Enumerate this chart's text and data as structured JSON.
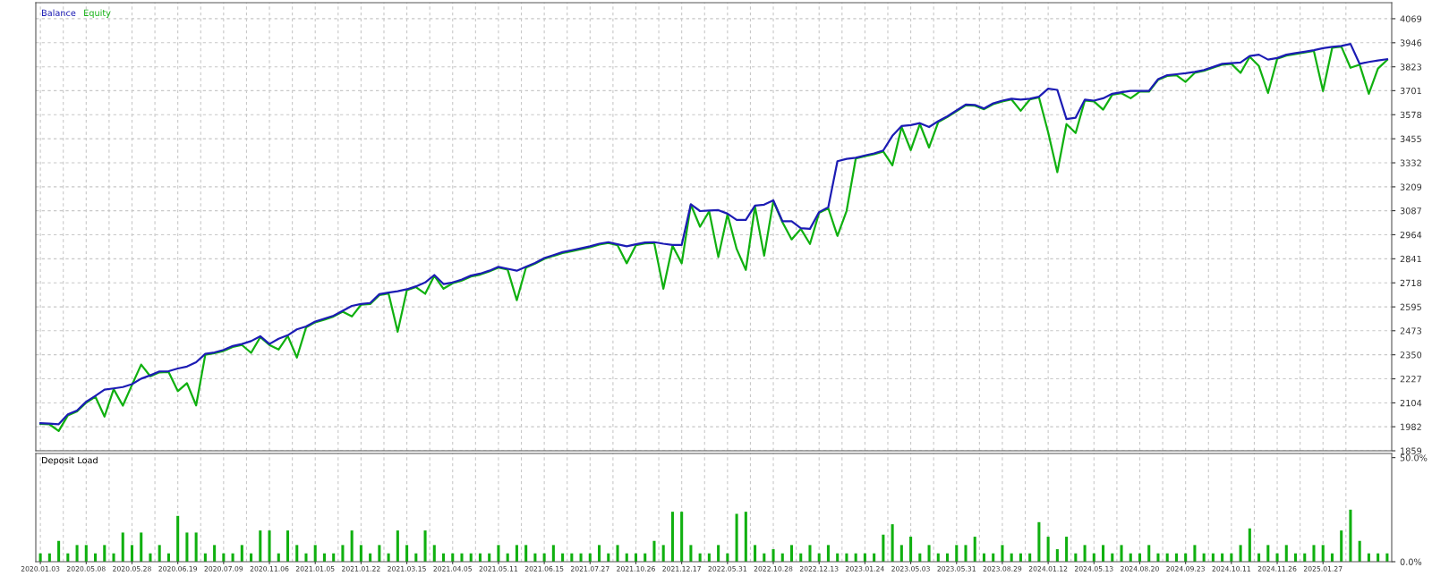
{
  "chart_data": [
    {
      "type": "line",
      "tick_labels": "y",
      "grid": true,
      "legend": "top left",
      "categories": [
        "2020.01.03",
        null,
        null,
        null,
        null,
        "2020.05.08",
        null,
        null,
        null,
        null,
        "2020.05.28",
        null,
        null,
        null,
        null,
        "2020.06.19",
        null,
        null,
        null,
        null,
        "2020.07.09",
        null,
        null,
        null,
        null,
        "2020.11.06",
        null,
        null,
        null,
        null,
        "2021.01.05",
        null,
        null,
        null,
        null,
        "2021.01.22",
        null,
        null,
        null,
        null,
        "2021.03.15",
        null,
        null,
        null,
        null,
        "2021.04.05",
        null,
        null,
        null,
        null,
        "2021.05.11",
        null,
        null,
        null,
        null,
        "2021.06.15",
        null,
        null,
        null,
        null,
        "2021.07.27",
        null,
        null,
        null,
        null,
        "2021.10.26",
        null,
        null,
        null,
        null,
        "2021.12.17",
        null,
        null,
        null,
        null,
        "2022.05.31",
        null,
        null,
        null,
        null,
        "2022.10.28",
        null,
        null,
        null,
        null,
        "2022.12.13",
        null,
        null,
        null,
        null,
        "2023.01.24",
        null,
        null,
        null,
        null,
        "2023.05.03",
        null,
        null,
        null,
        null,
        "2023.05.31",
        null,
        null,
        null,
        null,
        "2023.08.29",
        null,
        null,
        null,
        null,
        "2024.01.12",
        null,
        null,
        null,
        null,
        "2024.05.13",
        null,
        null,
        null,
        null,
        "2024.08.20",
        null,
        null,
        null,
        null,
        "2024.09.23",
        null,
        null,
        null,
        null,
        "2024.10.11",
        null,
        null,
        null,
        null,
        "2024.11.26",
        null,
        null,
        null,
        null,
        "2025.01.27",
        null,
        null,
        null,
        null,
        null,
        null,
        null
      ],
      "ylim": [
        1859,
        4151
      ],
      "yticks": [
        1859,
        1982,
        2104,
        2227,
        2350,
        2473,
        2595,
        2718,
        2841,
        2964,
        3087,
        3209,
        3332,
        3455,
        3578,
        3701,
        3823,
        3946,
        4069
      ],
      "series": [
        {
          "name": "Equity",
          "color": "#10b010",
          "values": [
            1996,
            1994,
            1960,
            2040,
            2060,
            2105,
            2136,
            2034,
            2174,
            2090,
            2196,
            2300,
            2240,
            2260,
            2262,
            2164,
            2205,
            2091,
            2350,
            2358,
            2370,
            2390,
            2400,
            2360,
            2440,
            2400,
            2377,
            2446,
            2336,
            2490,
            2516,
            2530,
            2546,
            2570,
            2546,
            2606,
            2610,
            2655,
            2664,
            2468,
            2680,
            2696,
            2662,
            2754,
            2688,
            2716,
            2730,
            2750,
            2760,
            2776,
            2796,
            2786,
            2629,
            2796,
            2816,
            2840,
            2856,
            2870,
            2880,
            2890,
            2900,
            2914,
            2922,
            2910,
            2818,
            2910,
            2920,
            2922,
            2688,
            2908,
            2818,
            3118,
            3005,
            3084,
            2850,
            3068,
            2891,
            2784,
            3108,
            2857,
            3136,
            3028,
            2940,
            2994,
            2917,
            3076,
            3100,
            2958,
            3086,
            3354,
            3366,
            3376,
            3390,
            3319,
            3515,
            3397,
            3530,
            3410,
            3540,
            3566,
            3596,
            3626,
            3624,
            3606,
            3632,
            3646,
            3656,
            3598,
            3656,
            3666,
            3488,
            3284,
            3530,
            3484,
            3650,
            3646,
            3604,
            3680,
            3688,
            3662,
            3696,
            3696,
            3756,
            3776,
            3780,
            3746,
            3792,
            3802,
            3818,
            3834,
            3838,
            3792,
            3874,
            3827,
            3689,
            3864,
            3880,
            3888,
            3896,
            3904,
            3699,
            3920,
            3926,
            3818,
            3834,
            3685,
            3814,
            3858
          ]
        },
        {
          "name": "Balance",
          "color": "#1c1cb4",
          "values": [
            2000,
            1998,
            1995,
            2045,
            2065,
            2110,
            2140,
            2172,
            2178,
            2185,
            2200,
            2228,
            2245,
            2265,
            2266,
            2280,
            2290,
            2312,
            2355,
            2362,
            2375,
            2395,
            2405,
            2420,
            2445,
            2405,
            2432,
            2450,
            2480,
            2495,
            2520,
            2535,
            2550,
            2575,
            2600,
            2610,
            2615,
            2660,
            2668,
            2675,
            2685,
            2700,
            2720,
            2758,
            2712,
            2720,
            2735,
            2755,
            2765,
            2780,
            2800,
            2790,
            2780,
            2800,
            2820,
            2845,
            2860,
            2875,
            2885,
            2895,
            2905,
            2918,
            2926,
            2915,
            2905,
            2915,
            2924,
            2926,
            2918,
            2912,
            2912,
            3120,
            3085,
            3088,
            3090,
            3072,
            3040,
            3040,
            3113,
            3118,
            3140,
            3033,
            3033,
            2998,
            2994,
            3080,
            3105,
            3340,
            3352,
            3358,
            3370,
            3380,
            3395,
            3470,
            3520,
            3525,
            3535,
            3515,
            3545,
            3570,
            3600,
            3630,
            3628,
            3610,
            3636,
            3650,
            3660,
            3655,
            3660,
            3670,
            3711,
            3705,
            3556,
            3563,
            3655,
            3650,
            3662,
            3685,
            3693,
            3700,
            3700,
            3700,
            3760,
            3780,
            3785,
            3790,
            3797,
            3806,
            3822,
            3838,
            3842,
            3845,
            3878,
            3885,
            3860,
            3868,
            3885,
            3893,
            3900,
            3908,
            3918,
            3925,
            3930,
            3940,
            3838,
            3848,
            3855,
            3862
          ]
        }
      ]
    },
    {
      "type": "bar",
      "title": "Deposit Load",
      "grid": "x",
      "color": "#10b010",
      "categories": [
        "2020.01.03",
        null,
        null,
        null,
        null,
        "2020.05.08",
        null,
        null,
        null,
        null,
        "2020.05.28",
        null,
        null,
        null,
        null,
        "2020.06.19",
        null,
        null,
        null,
        null,
        "2020.07.09",
        null,
        null,
        null,
        null,
        "2020.11.06",
        null,
        null,
        null,
        null,
        "2021.01.05",
        null,
        null,
        null,
        null,
        "2021.01.22",
        null,
        null,
        null,
        null,
        "2021.03.15",
        null,
        null,
        null,
        null,
        "2021.04.05",
        null,
        null,
        null,
        null,
        "2021.05.11",
        null,
        null,
        null,
        null,
        "2021.06.15",
        null,
        null,
        null,
        null,
        "2021.07.27",
        null,
        null,
        null,
        null,
        "2021.10.26",
        null,
        null,
        null,
        null,
        "2021.12.17",
        null,
        null,
        null,
        null,
        "2022.05.31",
        null,
        null,
        null,
        null,
        "2022.10.28",
        null,
        null,
        null,
        null,
        "2022.12.13",
        null,
        null,
        null,
        null,
        "2023.01.24",
        null,
        null,
        null,
        null,
        "2023.05.03",
        null,
        null,
        null,
        null,
        "2023.05.31",
        null,
        null,
        null,
        null,
        "2023.08.29",
        null,
        null,
        null,
        null,
        "2024.01.12",
        null,
        null,
        null,
        null,
        "2024.05.13",
        null,
        null,
        null,
        null,
        "2024.08.20",
        null,
        null,
        null,
        null,
        "2024.09.23",
        null,
        null,
        null,
        null,
        "2024.10.11",
        null,
        null,
        null,
        null,
        "2024.11.26",
        null,
        null,
        null,
        null,
        "2025.01.27",
        null,
        null,
        null,
        null,
        null,
        null,
        null
      ],
      "ylim": [
        0,
        52
      ],
      "yticks": [
        {
          "value": 0,
          "label": "0.0%"
        },
        {
          "value": 50,
          "label": "50.0%"
        }
      ],
      "values": [
        4,
        4,
        10,
        4,
        8,
        8,
        4,
        8,
        4,
        14,
        8,
        14,
        4,
        8,
        4,
        22,
        14,
        14,
        4,
        8,
        4,
        4,
        8,
        4,
        15,
        15,
        4,
        15,
        8,
        4,
        8,
        4,
        4,
        8,
        15,
        8,
        4,
        8,
        4,
        15,
        8,
        4,
        15,
        8,
        4,
        4,
        4,
        4,
        4,
        4,
        8,
        4,
        8,
        8,
        4,
        4,
        8,
        4,
        4,
        4,
        4,
        8,
        4,
        8,
        4,
        4,
        4,
        10,
        8,
        24,
        24,
        8,
        4,
        4,
        8,
        4,
        23,
        24,
        8,
        4,
        6,
        4,
        8,
        4,
        8,
        4,
        8,
        4,
        4,
        4,
        4,
        4,
        13,
        18,
        8,
        12,
        4,
        8,
        4,
        4,
        8,
        8,
        12,
        4,
        4,
        8,
        4,
        4,
        4,
        19,
        12,
        6,
        12,
        4,
        8,
        4,
        8,
        4,
        8,
        4,
        4,
        8,
        4,
        4,
        4,
        4,
        8,
        4,
        4,
        4,
        4,
        8,
        16,
        4,
        8,
        4,
        8,
        4,
        4,
        8,
        8,
        4,
        15,
        25,
        10,
        4,
        4,
        4
      ]
    }
  ]
}
